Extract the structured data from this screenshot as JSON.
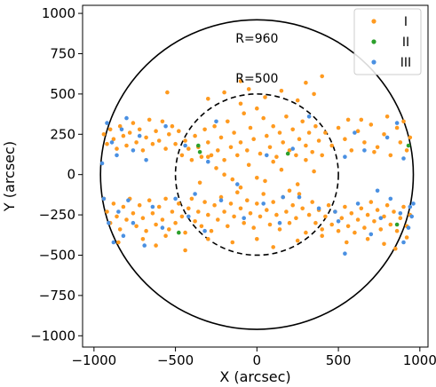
{
  "chart_data": {
    "type": "scatter",
    "title": "",
    "xlabel": "X (arcsec)",
    "ylabel": "Y (arcsec)",
    "xlim": [
      -1070,
      1050
    ],
    "ylim": [
      -1070,
      1050
    ],
    "xticks": [
      -1000,
      -500,
      0,
      500,
      1000
    ],
    "yticks": [
      -1000,
      -750,
      -500,
      -250,
      0,
      250,
      500,
      750,
      1000
    ],
    "xtick_labels": [
      "−1000",
      "−500",
      "0",
      "500",
      "1000"
    ],
    "ytick_labels": [
      "−1000",
      "−750",
      "−500",
      "−250",
      "0",
      "250",
      "500",
      "750",
      "1000"
    ],
    "legend_position": "top-right",
    "grid": false,
    "circles": [
      {
        "radius": 960,
        "style": "solid",
        "label": "R=960",
        "label_pos": [
          0,
          820
        ]
      },
      {
        "radius": 500,
        "style": "dashed",
        "label": "R=500",
        "label_pos": [
          0,
          570
        ]
      }
    ],
    "series": [
      {
        "name": "I",
        "color": "#ff9a1f",
        "points": [
          [
            -940,
            250
          ],
          [
            -920,
            190
          ],
          [
            -900,
            280
          ],
          [
            -880,
            220
          ],
          [
            -860,
            160
          ],
          [
            -840,
            300
          ],
          [
            -820,
            240
          ],
          [
            -800,
            180
          ],
          [
            -780,
            260
          ],
          [
            -760,
            320
          ],
          [
            -740,
            200
          ],
          [
            -720,
            280
          ],
          [
            -700,
            150
          ],
          [
            -680,
            230
          ],
          [
            -660,
            340
          ],
          [
            -640,
            190
          ],
          [
            -620,
            270
          ],
          [
            -600,
            210
          ],
          [
            -580,
            330
          ],
          [
            -560,
            160
          ],
          [
            -540,
            250
          ],
          [
            -520,
            300
          ],
          [
            -500,
            190
          ],
          [
            -480,
            270
          ],
          [
            -460,
            120
          ],
          [
            -440,
            210
          ],
          [
            -420,
            160
          ],
          [
            -400,
            90
          ],
          [
            -380,
            240
          ],
          [
            -360,
            170
          ],
          [
            -340,
            110
          ],
          [
            -320,
            280
          ],
          [
            -300,
            200
          ],
          [
            -280,
            120
          ],
          [
            -260,
            300
          ],
          [
            -240,
            150
          ],
          [
            -220,
            230
          ],
          [
            -200,
            90
          ],
          [
            -180,
            330
          ],
          [
            -160,
            170
          ],
          [
            -140,
            260
          ],
          [
            -120,
            120
          ],
          [
            -100,
            200
          ],
          [
            -80,
            380
          ],
          [
            -60,
            150
          ],
          [
            -40,
            290
          ],
          [
            -20,
            220
          ],
          [
            0,
            410
          ],
          [
            20,
            130
          ],
          [
            40,
            350
          ],
          [
            60,
            240
          ],
          [
            80,
            170
          ],
          [
            100,
            300
          ],
          [
            120,
            110
          ],
          [
            140,
            260
          ],
          [
            160,
            200
          ],
          [
            180,
            360
          ],
          [
            200,
            150
          ],
          [
            220,
            280
          ],
          [
            240,
            120
          ],
          [
            260,
            220
          ],
          [
            280,
            330
          ],
          [
            300,
            180
          ],
          [
            320,
            260
          ],
          [
            340,
            140
          ],
          [
            360,
            300
          ],
          [
            380,
            210
          ],
          [
            400,
            120
          ],
          [
            -300,
            470
          ],
          [
            -200,
            510
          ],
          [
            -100,
            440
          ],
          [
            -50,
            530
          ],
          [
            50,
            480
          ],
          [
            150,
            520
          ],
          [
            250,
            460
          ],
          [
            350,
            500
          ],
          [
            -550,
            510
          ],
          [
            400,
            610
          ],
          [
            300,
            570
          ],
          [
            -100,
            580
          ],
          [
            420,
            260
          ],
          [
            460,
            180
          ],
          [
            500,
            290
          ],
          [
            540,
            220
          ],
          [
            580,
            150
          ],
          [
            620,
            270
          ],
          [
            660,
            200
          ],
          [
            700,
            310
          ],
          [
            740,
            170
          ],
          [
            780,
            250
          ],
          [
            820,
            120
          ],
          [
            860,
            290
          ],
          [
            880,
            200
          ],
          [
            900,
            330
          ],
          [
            920,
            150
          ],
          [
            940,
            230
          ],
          [
            800,
            360
          ],
          [
            720,
            140
          ],
          [
            640,
            340
          ],
          [
            560,
            340
          ],
          [
            -940,
            -150
          ],
          [
            -920,
            -230
          ],
          [
            -900,
            -300
          ],
          [
            -880,
            -180
          ],
          [
            -860,
            -260
          ],
          [
            -840,
            -340
          ],
          [
            -820,
            -200
          ],
          [
            -800,
            -280
          ],
          [
            -780,
            -150
          ],
          [
            -760,
            -240
          ],
          [
            -740,
            -320
          ],
          [
            -720,
            -190
          ],
          [
            -700,
            -270
          ],
          [
            -680,
            -350
          ],
          [
            -660,
            -160
          ],
          [
            -640,
            -240
          ],
          [
            -620,
            -310
          ],
          [
            -600,
            -200
          ],
          [
            -580,
            -280
          ],
          [
            -560,
            -150
          ],
          [
            -540,
            -340
          ],
          [
            -520,
            -230
          ],
          [
            -500,
            -300
          ],
          [
            -480,
            -180
          ],
          [
            -460,
            -260
          ],
          [
            -440,
            -360
          ],
          [
            -420,
            -210
          ],
          [
            -400,
            -150
          ],
          [
            -380,
            -290
          ],
          [
            -360,
            -230
          ],
          [
            -340,
            -320
          ],
          [
            -320,
            -170
          ],
          [
            -300,
            -250
          ],
          [
            -280,
            -350
          ],
          [
            -260,
            -190
          ],
          [
            -240,
            -280
          ],
          [
            -220,
            -140
          ],
          [
            -200,
            -230
          ],
          [
            -180,
            -320
          ],
          [
            -160,
            -180
          ],
          [
            -140,
            -260
          ],
          [
            -120,
            -110
          ],
          [
            -100,
            -210
          ],
          [
            -80,
            -300
          ],
          [
            -60,
            -160
          ],
          [
            -40,
            -240
          ],
          [
            -20,
            -330
          ],
          [
            0,
            -180
          ],
          [
            20,
            -260
          ],
          [
            40,
            -120
          ],
          [
            60,
            -220
          ],
          [
            80,
            -310
          ],
          [
            100,
            -170
          ],
          [
            120,
            -250
          ],
          [
            140,
            -340
          ],
          [
            160,
            -140
          ],
          [
            180,
            -230
          ],
          [
            200,
            -300
          ],
          [
            220,
            -190
          ],
          [
            240,
            -270
          ],
          [
            260,
            -120
          ],
          [
            280,
            -210
          ],
          [
            300,
            -360
          ],
          [
            320,
            -250
          ],
          [
            340,
            -170
          ],
          [
            360,
            -300
          ],
          [
            380,
            -220
          ],
          [
            400,
            -340
          ],
          [
            420,
            -260
          ],
          [
            440,
            -190
          ],
          [
            460,
            -310
          ],
          [
            480,
            -230
          ],
          [
            500,
            -350
          ],
          [
            520,
            -270
          ],
          [
            540,
            -200
          ],
          [
            560,
            -320
          ],
          [
            580,
            -240
          ],
          [
            600,
            -360
          ],
          [
            620,
            -280
          ],
          [
            640,
            -210
          ],
          [
            660,
            -330
          ],
          [
            680,
            -250
          ],
          [
            700,
            -170
          ],
          [
            720,
            -290
          ],
          [
            740,
            -220
          ],
          [
            760,
            -340
          ],
          [
            780,
            -260
          ],
          [
            800,
            -190
          ],
          [
            820,
            -310
          ],
          [
            840,
            -230
          ],
          [
            860,
            -350
          ],
          [
            880,
            -270
          ],
          [
            900,
            -200
          ],
          [
            920,
            -320
          ],
          [
            940,
            -250
          ],
          [
            -850,
            -420
          ],
          [
            -700,
            -400
          ],
          [
            -620,
            -440
          ],
          [
            -560,
            -380
          ],
          [
            -440,
            -470
          ],
          [
            -300,
            -400
          ],
          [
            -150,
            -420
          ],
          [
            0,
            -400
          ],
          [
            100,
            -450
          ],
          [
            250,
            -410
          ],
          [
            400,
            -380
          ],
          [
            550,
            -420
          ],
          [
            680,
            -400
          ],
          [
            780,
            -430
          ],
          [
            850,
            -460
          ],
          [
            920,
            -390
          ],
          [
            -250,
            40
          ],
          [
            -150,
            -30
          ],
          [
            -50,
            60
          ],
          [
            50,
            -40
          ],
          [
            150,
            30
          ],
          [
            250,
            -60
          ],
          [
            350,
            20
          ],
          [
            -350,
            -50
          ],
          [
            -200,
            0
          ],
          [
            100,
            80
          ],
          [
            200,
            -100
          ],
          [
            -100,
            -80
          ],
          [
            300,
            90
          ],
          [
            -300,
            110
          ],
          [
            0,
            -20
          ]
        ]
      },
      {
        "name": "II",
        "color": "#2ca02c",
        "points": [
          [
            -360,
            180
          ],
          [
            -350,
            140
          ],
          [
            -480,
            -360
          ],
          [
            190,
            130
          ],
          [
            860,
            -310
          ],
          [
            930,
            180
          ]
        ]
      },
      {
        "name": "III",
        "color": "#4a90e2",
        "points": [
          [
            -950,
            70
          ],
          [
            -920,
            320
          ],
          [
            -890,
            200
          ],
          [
            -860,
            120
          ],
          [
            -830,
            280
          ],
          [
            -800,
            350
          ],
          [
            -760,
            150
          ],
          [
            -720,
            240
          ],
          [
            -680,
            90
          ],
          [
            -560,
            300
          ],
          [
            -440,
            180
          ],
          [
            -380,
            -120
          ],
          [
            -300,
            80
          ],
          [
            -250,
            330
          ],
          [
            -120,
            -60
          ],
          [
            60,
            120
          ],
          [
            160,
            -140
          ],
          [
            220,
            160
          ],
          [
            320,
            360
          ],
          [
            480,
            -230
          ],
          [
            540,
            110
          ],
          [
            600,
            260
          ],
          [
            660,
            150
          ],
          [
            740,
            -100
          ],
          [
            800,
            230
          ],
          [
            860,
            320
          ],
          [
            900,
            100
          ],
          [
            940,
            -200
          ],
          [
            -940,
            -150
          ],
          [
            -910,
            -300
          ],
          [
            -880,
            -420
          ],
          [
            -850,
            -230
          ],
          [
            -820,
            -380
          ],
          [
            -790,
            -160
          ],
          [
            -760,
            -300
          ],
          [
            -690,
            -440
          ],
          [
            -640,
            -200
          ],
          [
            -580,
            -330
          ],
          [
            -500,
            -150
          ],
          [
            -420,
            -260
          ],
          [
            -320,
            -350
          ],
          [
            -220,
            -160
          ],
          [
            -80,
            -270
          ],
          [
            40,
            -180
          ],
          [
            140,
            -300
          ],
          [
            260,
            -140
          ],
          [
            380,
            -210
          ],
          [
            500,
            -290
          ],
          [
            540,
            -490
          ],
          [
            620,
            -180
          ],
          [
            700,
            -370
          ],
          [
            760,
            -270
          ],
          [
            820,
            -150
          ],
          [
            880,
            -240
          ],
          [
            900,
            -420
          ],
          [
            930,
            -330
          ],
          [
            950,
            -260
          ],
          [
            960,
            -180
          ]
        ]
      }
    ]
  }
}
